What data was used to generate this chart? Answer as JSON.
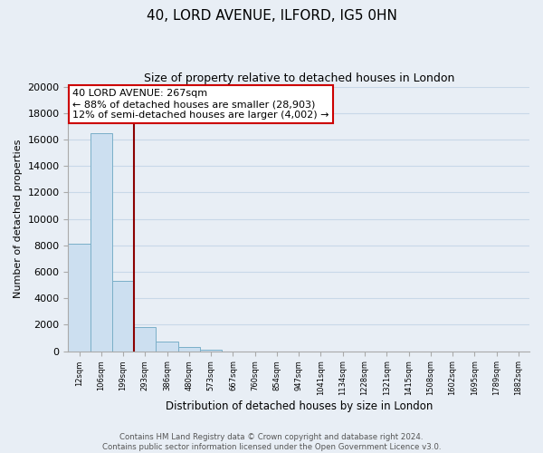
{
  "title": "40, LORD AVENUE, ILFORD, IG5 0HN",
  "subtitle": "Size of property relative to detached houses in London",
  "xlabel": "Distribution of detached houses by size in London",
  "ylabel": "Number of detached properties",
  "bar_labels": [
    "12sqm",
    "106sqm",
    "199sqm",
    "293sqm",
    "386sqm",
    "480sqm",
    "573sqm",
    "667sqm",
    "760sqm",
    "854sqm",
    "947sqm",
    "1041sqm",
    "1134sqm",
    "1228sqm",
    "1321sqm",
    "1415sqm",
    "1508sqm",
    "1602sqm",
    "1695sqm",
    "1789sqm",
    "1882sqm"
  ],
  "bar_values": [
    8100,
    16500,
    5300,
    1800,
    750,
    300,
    120,
    0,
    0,
    0,
    0,
    0,
    0,
    0,
    0,
    0,
    0,
    0,
    0,
    0,
    0
  ],
  "bar_color": "#ccdff0",
  "bar_edge_color": "#7aafc8",
  "vline_x": 2.5,
  "vline_color": "#8b0000",
  "ylim": [
    0,
    20000
  ],
  "yticks": [
    0,
    2000,
    4000,
    6000,
    8000,
    10000,
    12000,
    14000,
    16000,
    18000,
    20000
  ],
  "annotation_title": "40 LORD AVENUE: 267sqm",
  "annotation_line1": "← 88% of detached houses are smaller (28,903)",
  "annotation_line2": "12% of semi-detached houses are larger (4,002) →",
  "annotation_box_color": "#ffffff",
  "annotation_box_edge": "#cc0000",
  "footer_line1": "Contains HM Land Registry data © Crown copyright and database right 2024.",
  "footer_line2": "Contains public sector information licensed under the Open Government Licence v3.0.",
  "background_color": "#e8eef5",
  "plot_bg_color": "#e8eef5",
  "grid_color": "#c8d8e8"
}
